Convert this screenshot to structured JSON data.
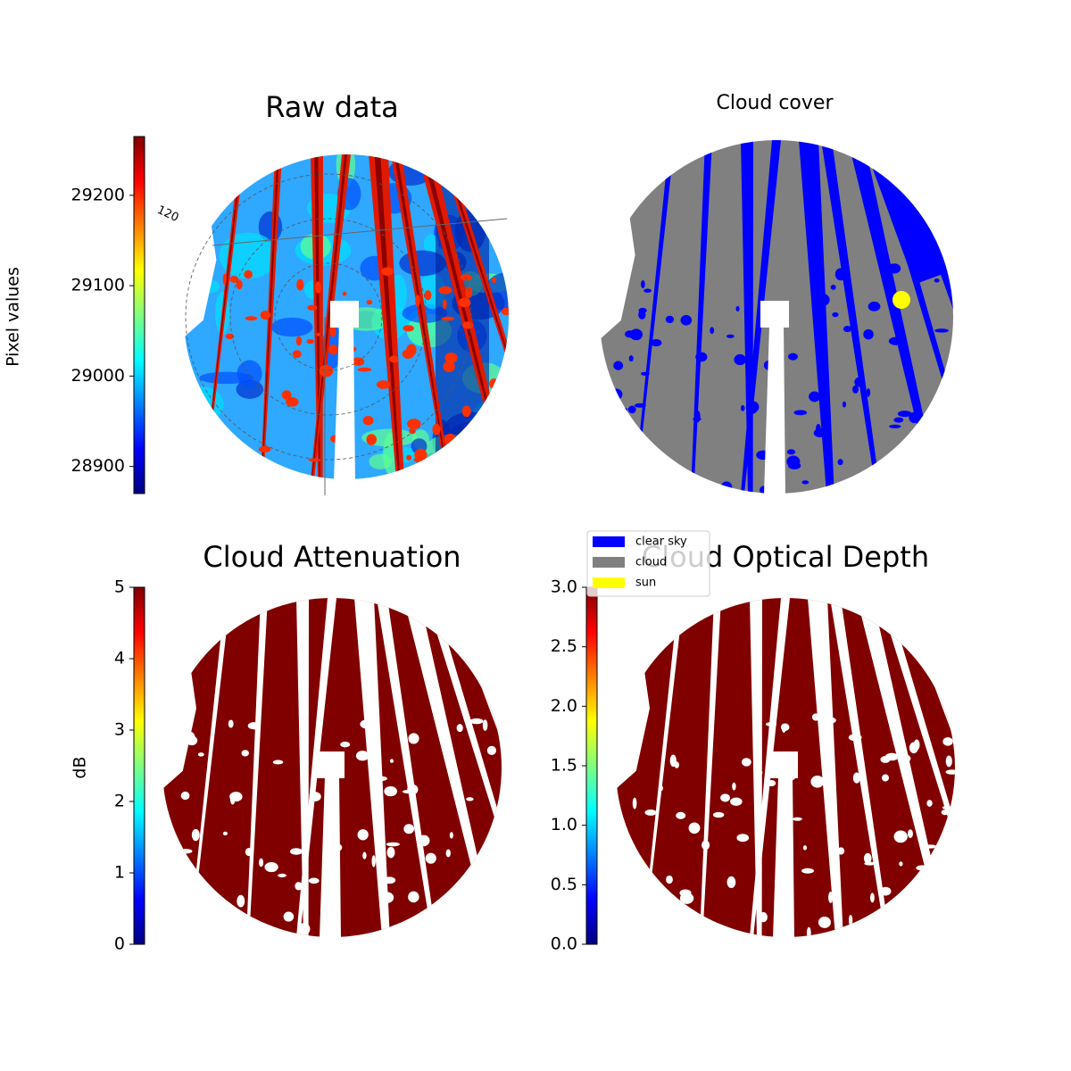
{
  "chart_data": [
    {
      "type": "image",
      "title": "Raw data",
      "annotations": [
        "120"
      ],
      "colorbar": {
        "label": "Pixel values",
        "ylim": [
          28870,
          29265
        ],
        "yticks": [
          28900,
          29000,
          29100,
          29200
        ]
      }
    },
    {
      "type": "image",
      "title": "Cloud cover",
      "legend": [
        {
          "name": "clear sky",
          "color": "#0000ff"
        },
        {
          "name": "cloud",
          "color": "#808080"
        },
        {
          "name": "sun",
          "color": "#ffff00"
        }
      ]
    },
    {
      "type": "image",
      "title": "Cloud Attenuation",
      "colorbar": {
        "label": "dB",
        "ylim": [
          0,
          5
        ],
        "yticks": [
          0,
          1,
          2,
          3,
          4,
          5
        ]
      }
    },
    {
      "type": "image",
      "title": "Cloud Optical Depth",
      "colorbar": {
        "ylim": [
          0,
          3
        ],
        "yticks": [
          {
            "value": 0,
            "label": "0.0"
          },
          {
            "value": 0.5,
            "label": "0.5"
          },
          {
            "value": 1,
            "label": "1.0"
          },
          {
            "value": 1.5,
            "label": "1.5"
          },
          {
            "value": 2,
            "label": "2.0"
          },
          {
            "value": 2.5,
            "label": "2.5"
          },
          {
            "value": 3,
            "label": "3.0"
          }
        ]
      }
    }
  ]
}
